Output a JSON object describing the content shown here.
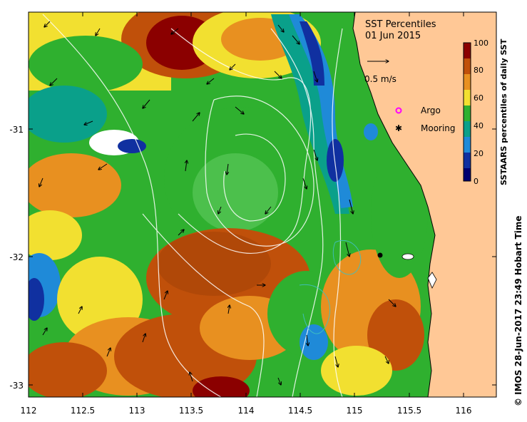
{
  "title": "SST Percentiles",
  "date": "01 Jun 2015",
  "colorbar": {
    "label": "SSTAARS percentiles of daily SST",
    "ticks": [
      "100",
      "80",
      "60",
      "40",
      "20",
      "0"
    ],
    "colors": [
      "#8b0000",
      "#c0500a",
      "#e89020",
      "#f2e030",
      "#2fb02f",
      "#0aa08a",
      "#1f8ad8",
      "#1030a0",
      "#000070"
    ]
  },
  "velocity_scale_label": "0.5 m/s",
  "legend": {
    "argo_label": "Argo",
    "argo_color": "#ff00ff",
    "mooring_label": "Mooring"
  },
  "credit": "IMOS 28-Jun-2017 23:49 Hobart Time",
  "copyright_symbol": "©",
  "x_ticks": [
    "112",
    "112.5",
    "113",
    "113.5",
    "114",
    "114.5",
    "115",
    "115.5",
    "116"
  ],
  "y_ticks": [
    "-31",
    "-32",
    "-33"
  ],
  "land_color": "#ffc896",
  "chart_data": {
    "type": "heatmap",
    "title": "SST Percentiles",
    "subtitle": "01 Jun 2015",
    "xlim": [
      112,
      116.3
    ],
    "ylim": [
      -33.1,
      -30.15
    ],
    "x_ticks": [
      112,
      112.5,
      113,
      113.5,
      114,
      114.5,
      115,
      115.5,
      116
    ],
    "y_ticks": [
      -31,
      -32,
      -33
    ],
    "color_scale": {
      "min": 0,
      "max": 100,
      "label": "SSTAARS percentiles of daily SST"
    },
    "markers": [
      {
        "name": "Mooring",
        "lon": 115.22,
        "lat": -31.98
      }
    ]
  }
}
